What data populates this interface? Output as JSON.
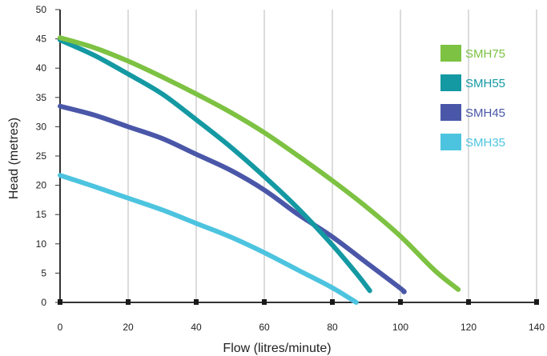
{
  "chart_data": {
    "type": "line",
    "title": "",
    "xlabel": "Flow (litres/minute)",
    "ylabel": "Head (metres)",
    "xlim": [
      0,
      140
    ],
    "ylim": [
      0,
      50
    ],
    "xticks": [
      "0",
      "20",
      "40",
      "60",
      "80",
      "100",
      "120",
      "140"
    ],
    "yticks": [
      "0",
      "5",
      "10",
      "15",
      "20",
      "25",
      "30",
      "35",
      "40",
      "45",
      "50"
    ],
    "grid": "vertical",
    "legend_position": "top-right",
    "series": [
      {
        "name": "SMH75",
        "color": "#7dc242",
        "points": [
          [
            0,
            45.2
          ],
          [
            10,
            43.5
          ],
          [
            20,
            41.2
          ],
          [
            30,
            38.5
          ],
          [
            40,
            35.6
          ],
          [
            50,
            32.5
          ],
          [
            60,
            29.0
          ],
          [
            70,
            25.0
          ],
          [
            80,
            20.8
          ],
          [
            90,
            16.3
          ],
          [
            100,
            11.3
          ],
          [
            110,
            5.5
          ],
          [
            117,
            2.2
          ]
        ]
      },
      {
        "name": "SMH55",
        "color": "#1499a3",
        "points": [
          [
            0,
            44.8
          ],
          [
            10,
            42.2
          ],
          [
            20,
            39.0
          ],
          [
            30,
            35.6
          ],
          [
            40,
            31.2
          ],
          [
            50,
            26.6
          ],
          [
            60,
            21.5
          ],
          [
            70,
            16.0
          ],
          [
            80,
            9.8
          ],
          [
            87,
            5.0
          ],
          [
            91,
            2.0
          ]
        ]
      },
      {
        "name": "SMH45",
        "color": "#4a57a8",
        "points": [
          [
            0,
            33.5
          ],
          [
            10,
            32.0
          ],
          [
            20,
            30.0
          ],
          [
            30,
            28.0
          ],
          [
            40,
            25.3
          ],
          [
            50,
            22.6
          ],
          [
            60,
            19.2
          ],
          [
            70,
            15.0
          ],
          [
            80,
            11.2
          ],
          [
            90,
            6.8
          ],
          [
            100,
            2.4
          ],
          [
            101,
            1.8
          ]
        ]
      },
      {
        "name": "SMH35",
        "color": "#4dc4df",
        "points": [
          [
            0,
            21.7
          ],
          [
            10,
            19.8
          ],
          [
            20,
            17.8
          ],
          [
            30,
            15.8
          ],
          [
            40,
            13.5
          ],
          [
            50,
            11.2
          ],
          [
            60,
            8.5
          ],
          [
            70,
            5.5
          ],
          [
            80,
            2.5
          ],
          [
            87,
            0
          ]
        ]
      }
    ]
  }
}
